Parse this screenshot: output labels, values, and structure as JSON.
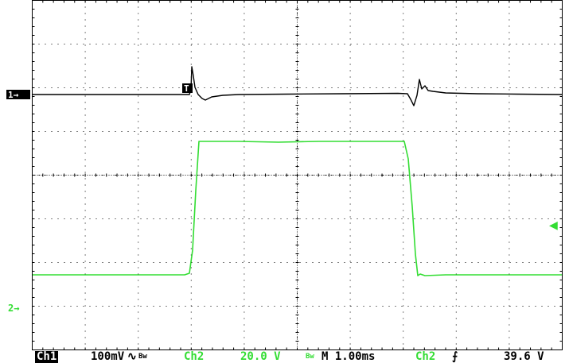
{
  "screen": {
    "background_color": "#ffffff",
    "grid_color": "#000000",
    "ch1_color": "#000000",
    "ch2_color": "#33dd33"
  },
  "markers": {
    "ch1_level": "1→",
    "ch2_level": "2→",
    "trigger_position": "T",
    "ch2_trigger_level": "◀"
  },
  "status": {
    "ch1_badge": "Ch1",
    "ch1_scale": "100mV",
    "ch1_coupling_symbol": "∿",
    "ch1_bw_symbol": "Bw",
    "ch2_label": "Ch2",
    "ch2_scale": "20.0 V",
    "ch2_bw_symbol": "Bw",
    "timebase": "M 1.00ms",
    "trigger_source": "Ch2",
    "trigger_slope_symbol": "⨍",
    "trigger_level": "39.6 V"
  }
}
